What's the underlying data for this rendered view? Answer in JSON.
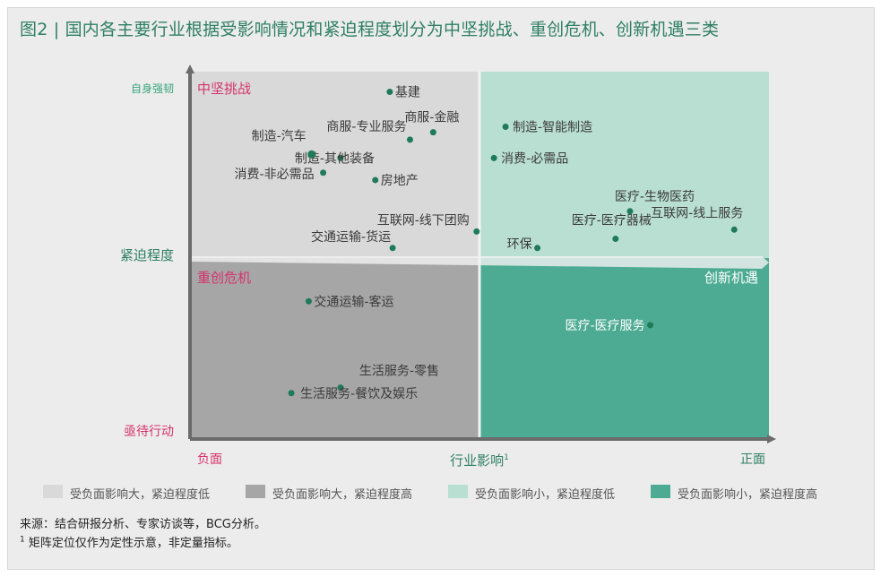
{
  "title": "图2 | 国内各主要行业根据受影响情况和紧迫程度划分为中坚挑战、重创危机、创新机遇三类",
  "chart_data": {
    "type": "scatter",
    "xlabel": "行业影响",
    "xlabel_sup": "1",
    "ylabel": "紧迫程度",
    "x_tick_labels": {
      "left": "负面",
      "right": "正面"
    },
    "y_tick_labels": {
      "top": "自身强韧",
      "bottom": "亟待行动"
    },
    "xlim": [
      0,
      100
    ],
    "ylim": [
      0,
      100
    ],
    "quadrants": [
      {
        "name": "中坚挑战",
        "position": "top-left",
        "fill": "#d9d9d9",
        "label_color": "#d6336c"
      },
      {
        "name": "重创危机",
        "position": "bottom-left",
        "fill": "#a6a6a6",
        "label_color": "#d6336c"
      },
      {
        "name": "创新机遇",
        "position": "bottom-right",
        "fill": "#4cab92",
        "label_color": "#ffffff"
      },
      {
        "name": "",
        "position": "top-right",
        "fill": "#b9dfd2",
        "label_color": ""
      }
    ],
    "points": [
      {
        "label": "基建",
        "x": 34.5,
        "y": 94.5
      },
      {
        "label": "商服-金融",
        "x": 42.0,
        "y": 83.5
      },
      {
        "label": "商服-专业服务",
        "x": 38.0,
        "y": 81.5
      },
      {
        "label": "制造-其他装备",
        "x": 26.0,
        "y": 76.5
      },
      {
        "label": "制造-汽车",
        "x": 21.0,
        "y": 77.5
      },
      {
        "label": "消费-非必需品",
        "x": 23.0,
        "y": 72.5
      },
      {
        "label": "房地产",
        "x": 32.0,
        "y": 70.5
      },
      {
        "label": "互联网-线下团购",
        "x": 49.5,
        "y": 56.5
      },
      {
        "label": "交通运输-货运",
        "x": 35.0,
        "y": 52.0
      },
      {
        "label": "制造-智能制造",
        "x": 54.5,
        "y": 85.0
      },
      {
        "label": "消费-必需品",
        "x": 52.5,
        "y": 76.5
      },
      {
        "label": "医疗-生物医药",
        "x": 76.0,
        "y": 62.0
      },
      {
        "label": "互联网-线上服务",
        "x": 94.0,
        "y": 57.0
      },
      {
        "label": "医疗-医疗器械",
        "x": 73.5,
        "y": 54.5
      },
      {
        "label": "环保",
        "x": 60.0,
        "y": 52.0
      },
      {
        "label": "交通运输-客运",
        "x": 20.5,
        "y": 37.5
      },
      {
        "label": "医疗-医疗服务",
        "x": 79.5,
        "y": 31.0
      },
      {
        "label": "生活服务-零售",
        "x": 26.0,
        "y": 14.0
      },
      {
        "label": "生活服务-餐饮及娱乐",
        "x": 17.5,
        "y": 12.5
      }
    ],
    "grid": false
  },
  "legend": [
    {
      "label": "受负面影响大，紧迫程度低",
      "color": "#d9d9d9"
    },
    {
      "label": "受负面影响大，紧迫程度高",
      "color": "#a6a6a6"
    },
    {
      "label": "受负面影响小，紧迫程度低",
      "color": "#b9dfd2"
    },
    {
      "label": "受负面影响小，紧迫程度高",
      "color": "#4cab92"
    }
  ],
  "source": "来源：结合研报分析、专家访谈等，BCG分析。",
  "note_sup": "1",
  "note": "矩阵定位仅作为定性示意，非定量指标。",
  "colors": {
    "accent_green": "#2e7f63",
    "quadrant_red": "#d6336c",
    "point": "#1f7a58",
    "axis": "#6b6b6b"
  }
}
